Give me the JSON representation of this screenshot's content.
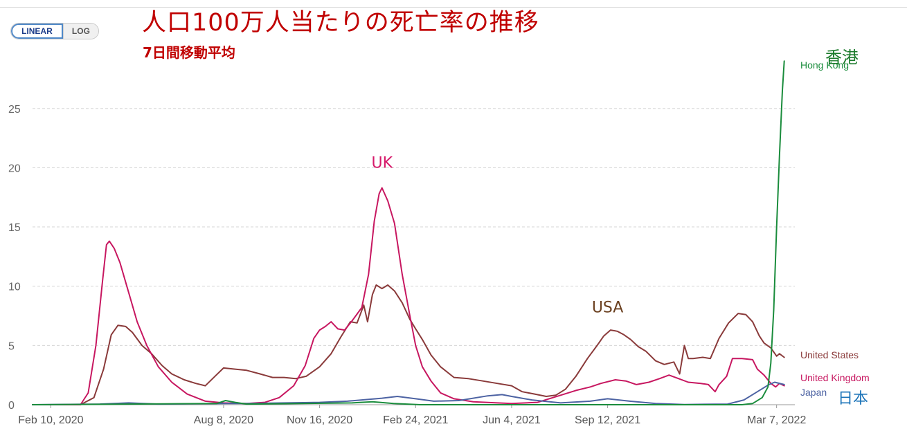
{
  "controls": {
    "linear_label": "LINEAR",
    "log_label": "LOG",
    "selected": "LINEAR"
  },
  "chart_data": {
    "type": "line",
    "title": "人口100万人当たりの死亡率の推移",
    "subtitle": "7日間移動平均",
    "xlabel": "",
    "ylabel": "",
    "x_range": [
      "2020-01-22",
      "2022-03-26"
    ],
    "ylim": [
      0,
      29
    ],
    "y_ticks": [
      0,
      5,
      10,
      15,
      20,
      25
    ],
    "x_tick_labels": [
      {
        "date": "2020-02-10",
        "label": "Feb 10, 2020"
      },
      {
        "date": "2020-08-08",
        "label": "Aug 8, 2020"
      },
      {
        "date": "2020-11-16",
        "label": "Nov 16, 2020"
      },
      {
        "date": "2021-02-24",
        "label": "Feb 24, 2021"
      },
      {
        "date": "2021-06-04",
        "label": "Jun 4, 2021"
      },
      {
        "date": "2021-09-12",
        "label": "Sep 12, 2021"
      },
      {
        "date": "2022-03-07",
        "label": "Mar 7, 2022"
      }
    ],
    "grid": "horizontal-dashed",
    "legend": "line-end labels",
    "series": [
      {
        "name": "United States",
        "color": "#8a3a3a",
        "points": [
          [
            "2020-01-22",
            0
          ],
          [
            "2020-03-12",
            0
          ],
          [
            "2020-03-26",
            0.6
          ],
          [
            "2020-04-05",
            3.0
          ],
          [
            "2020-04-13",
            5.9
          ],
          [
            "2020-04-20",
            6.7
          ],
          [
            "2020-04-28",
            6.6
          ],
          [
            "2020-05-05",
            6.1
          ],
          [
            "2020-05-15",
            5.0
          ],
          [
            "2020-05-25",
            4.3
          ],
          [
            "2020-06-05",
            3.3
          ],
          [
            "2020-06-15",
            2.6
          ],
          [
            "2020-06-28",
            2.1
          ],
          [
            "2020-07-10",
            1.8
          ],
          [
            "2020-07-20",
            1.6
          ],
          [
            "2020-07-30",
            2.4
          ],
          [
            "2020-08-08",
            3.1
          ],
          [
            "2020-08-20",
            3.0
          ],
          [
            "2020-09-01",
            2.9
          ],
          [
            "2020-09-15",
            2.6
          ],
          [
            "2020-09-28",
            2.3
          ],
          [
            "2020-10-10",
            2.3
          ],
          [
            "2020-10-22",
            2.2
          ],
          [
            "2020-11-02",
            2.4
          ],
          [
            "2020-11-16",
            3.2
          ],
          [
            "2020-11-28",
            4.3
          ],
          [
            "2020-12-08",
            5.7
          ],
          [
            "2020-12-18",
            7.0
          ],
          [
            "2020-12-25",
            6.9
          ],
          [
            "2021-01-01",
            8.4
          ],
          [
            "2021-01-05",
            7.0
          ],
          [
            "2021-01-10",
            9.3
          ],
          [
            "2021-01-14",
            10.1
          ],
          [
            "2021-01-20",
            9.8
          ],
          [
            "2021-01-26",
            10.1
          ],
          [
            "2021-02-02",
            9.6
          ],
          [
            "2021-02-10",
            8.6
          ],
          [
            "2021-02-18",
            7.2
          ],
          [
            "2021-02-24",
            6.4
          ],
          [
            "2021-03-03",
            5.5
          ],
          [
            "2021-03-12",
            4.2
          ],
          [
            "2021-03-22",
            3.2
          ],
          [
            "2021-04-05",
            2.3
          ],
          [
            "2021-04-20",
            2.2
          ],
          [
            "2021-05-05",
            2.0
          ],
          [
            "2021-05-20",
            1.8
          ],
          [
            "2021-06-04",
            1.6
          ],
          [
            "2021-06-15",
            1.1
          ],
          [
            "2021-06-28",
            0.9
          ],
          [
            "2021-07-10",
            0.7
          ],
          [
            "2021-07-20",
            0.8
          ],
          [
            "2021-07-30",
            1.3
          ],
          [
            "2021-08-10",
            2.4
          ],
          [
            "2021-08-22",
            3.9
          ],
          [
            "2021-09-01",
            5.0
          ],
          [
            "2021-09-08",
            5.8
          ],
          [
            "2021-09-15",
            6.3
          ],
          [
            "2021-09-22",
            6.2
          ],
          [
            "2021-09-29",
            5.9
          ],
          [
            "2021-10-06",
            5.5
          ],
          [
            "2021-10-14",
            4.9
          ],
          [
            "2021-10-22",
            4.5
          ],
          [
            "2021-11-01",
            3.7
          ],
          [
            "2021-11-10",
            3.4
          ],
          [
            "2021-11-20",
            3.6
          ],
          [
            "2021-11-26",
            2.6
          ],
          [
            "2021-12-01",
            5.0
          ],
          [
            "2021-12-05",
            3.9
          ],
          [
            "2021-12-10",
            3.9
          ],
          [
            "2021-12-20",
            4.0
          ],
          [
            "2021-12-28",
            3.9
          ],
          [
            "2022-01-06",
            5.6
          ],
          [
            "2022-01-16",
            6.9
          ],
          [
            "2022-01-26",
            7.7
          ],
          [
            "2022-02-03",
            7.6
          ],
          [
            "2022-02-10",
            7.0
          ],
          [
            "2022-02-17",
            5.8
          ],
          [
            "2022-02-22",
            5.2
          ],
          [
            "2022-03-01",
            4.8
          ],
          [
            "2022-03-07",
            4.1
          ],
          [
            "2022-03-10",
            4.3
          ],
          [
            "2022-03-15",
            4.0
          ]
        ]
      },
      {
        "name": "United Kingdom",
        "color": "#c71760",
        "points": [
          [
            "2020-01-22",
            0
          ],
          [
            "2020-03-12",
            0
          ],
          [
            "2020-03-20",
            1.0
          ],
          [
            "2020-03-28",
            5.0
          ],
          [
            "2020-04-04",
            10.5
          ],
          [
            "2020-04-08",
            13.5
          ],
          [
            "2020-04-11",
            13.8
          ],
          [
            "2020-04-16",
            13.2
          ],
          [
            "2020-04-22",
            12.0
          ],
          [
            "2020-05-01",
            9.5
          ],
          [
            "2020-05-10",
            7.0
          ],
          [
            "2020-05-20",
            5.0
          ],
          [
            "2020-06-01",
            3.2
          ],
          [
            "2020-06-15",
            1.9
          ],
          [
            "2020-07-01",
            0.9
          ],
          [
            "2020-07-20",
            0.3
          ],
          [
            "2020-08-08",
            0.15
          ],
          [
            "2020-09-01",
            0.1
          ],
          [
            "2020-09-20",
            0.2
          ],
          [
            "2020-10-05",
            0.6
          ],
          [
            "2020-10-20",
            1.6
          ],
          [
            "2020-11-01",
            3.3
          ],
          [
            "2020-11-10",
            5.6
          ],
          [
            "2020-11-16",
            6.3
          ],
          [
            "2020-11-22",
            6.6
          ],
          [
            "2020-11-28",
            7.0
          ],
          [
            "2020-12-05",
            6.4
          ],
          [
            "2020-12-12",
            6.3
          ],
          [
            "2020-12-20",
            7.1
          ],
          [
            "2020-12-30",
            8.2
          ],
          [
            "2021-01-06",
            11.0
          ],
          [
            "2021-01-12",
            15.5
          ],
          [
            "2021-01-17",
            17.8
          ],
          [
            "2021-01-20",
            18.3
          ],
          [
            "2021-01-26",
            17.2
          ],
          [
            "2021-02-02",
            15.3
          ],
          [
            "2021-02-10",
            11.0
          ],
          [
            "2021-02-18",
            7.5
          ],
          [
            "2021-02-24",
            5.0
          ],
          [
            "2021-03-03",
            3.2
          ],
          [
            "2021-03-12",
            2.0
          ],
          [
            "2021-03-22",
            1.0
          ],
          [
            "2021-04-05",
            0.5
          ],
          [
            "2021-04-25",
            0.25
          ],
          [
            "2021-05-20",
            0.15
          ],
          [
            "2021-06-04",
            0.1
          ],
          [
            "2021-07-01",
            0.2
          ],
          [
            "2021-07-25",
            0.8
          ],
          [
            "2021-08-10",
            1.2
          ],
          [
            "2021-08-25",
            1.5
          ],
          [
            "2021-09-05",
            1.8
          ],
          [
            "2021-09-20",
            2.1
          ],
          [
            "2021-10-01",
            2.0
          ],
          [
            "2021-10-12",
            1.7
          ],
          [
            "2021-10-25",
            1.9
          ],
          [
            "2021-11-05",
            2.2
          ],
          [
            "2021-11-15",
            2.5
          ],
          [
            "2021-11-25",
            2.2
          ],
          [
            "2021-12-05",
            1.9
          ],
          [
            "2021-12-18",
            1.8
          ],
          [
            "2021-12-26",
            1.7
          ],
          [
            "2022-01-02",
            1.1
          ],
          [
            "2022-01-06",
            1.7
          ],
          [
            "2022-01-14",
            2.4
          ],
          [
            "2022-01-20",
            3.9
          ],
          [
            "2022-01-30",
            3.9
          ],
          [
            "2022-02-10",
            3.8
          ],
          [
            "2022-02-15",
            3.0
          ],
          [
            "2022-02-22",
            2.5
          ],
          [
            "2022-03-01",
            1.8
          ],
          [
            "2022-03-06",
            1.5
          ],
          [
            "2022-03-10",
            1.8
          ],
          [
            "2022-03-15",
            1.6
          ]
        ]
      },
      {
        "name": "Japan",
        "color": "#4d63a3",
        "points": [
          [
            "2020-01-22",
            0
          ],
          [
            "2020-04-01",
            0.05
          ],
          [
            "2020-05-01",
            0.15
          ],
          [
            "2020-06-01",
            0.05
          ],
          [
            "2020-08-08",
            0.1
          ],
          [
            "2020-09-01",
            0.1
          ],
          [
            "2020-11-16",
            0.2
          ],
          [
            "2020-12-15",
            0.3
          ],
          [
            "2021-01-20",
            0.55
          ],
          [
            "2021-02-05",
            0.7
          ],
          [
            "2021-02-24",
            0.5
          ],
          [
            "2021-03-15",
            0.3
          ],
          [
            "2021-04-10",
            0.35
          ],
          [
            "2021-05-10",
            0.75
          ],
          [
            "2021-05-25",
            0.85
          ],
          [
            "2021-06-04",
            0.7
          ],
          [
            "2021-06-25",
            0.4
          ],
          [
            "2021-07-25",
            0.15
          ],
          [
            "2021-08-25",
            0.3
          ],
          [
            "2021-09-12",
            0.5
          ],
          [
            "2021-10-05",
            0.3
          ],
          [
            "2021-11-01",
            0.1
          ],
          [
            "2021-12-01",
            0.02
          ],
          [
            "2022-01-15",
            0.05
          ],
          [
            "2022-02-01",
            0.4
          ],
          [
            "2022-02-15",
            1.1
          ],
          [
            "2022-02-27",
            1.7
          ],
          [
            "2022-03-05",
            1.9
          ],
          [
            "2022-03-15",
            1.7
          ]
        ]
      },
      {
        "name": "Hong Kong",
        "color": "#1a8c3c",
        "points": [
          [
            "2020-01-22",
            0
          ],
          [
            "2020-08-01",
            0.1
          ],
          [
            "2020-08-10",
            0.35
          ],
          [
            "2020-08-20",
            0.2
          ],
          [
            "2020-09-01",
            0.05
          ],
          [
            "2020-12-20",
            0.15
          ],
          [
            "2021-01-10",
            0.25
          ],
          [
            "2021-02-01",
            0.1
          ],
          [
            "2021-03-01",
            0
          ],
          [
            "2022-01-30",
            0
          ],
          [
            "2022-02-10",
            0.1
          ],
          [
            "2022-02-20",
            0.6
          ],
          [
            "2022-02-26",
            1.5
          ],
          [
            "2022-03-01",
            3.5
          ],
          [
            "2022-03-04",
            8.0
          ],
          [
            "2022-03-07",
            15.0
          ],
          [
            "2022-03-10",
            21.0
          ],
          [
            "2022-03-13",
            26.5
          ],
          [
            "2022-03-15",
            29.0
          ]
        ]
      }
    ],
    "end_labels": [
      "Hong Kong",
      "United States",
      "United Kingdom",
      "Japan"
    ],
    "annotations": [
      {
        "text": "UK",
        "color": "#d6196a",
        "date": "2021-01-20",
        "y": 20
      },
      {
        "text": "USA",
        "color": "#6b4020",
        "date": "2021-09-12",
        "y": 7.8
      },
      {
        "text": "香港",
        "color": "#1a7a2a",
        "date": "2022-03-20",
        "y": 29.8
      },
      {
        "text": "日本",
        "color": "#1a73b8",
        "date": "2022-03-20",
        "y": 0.4
      }
    ]
  }
}
